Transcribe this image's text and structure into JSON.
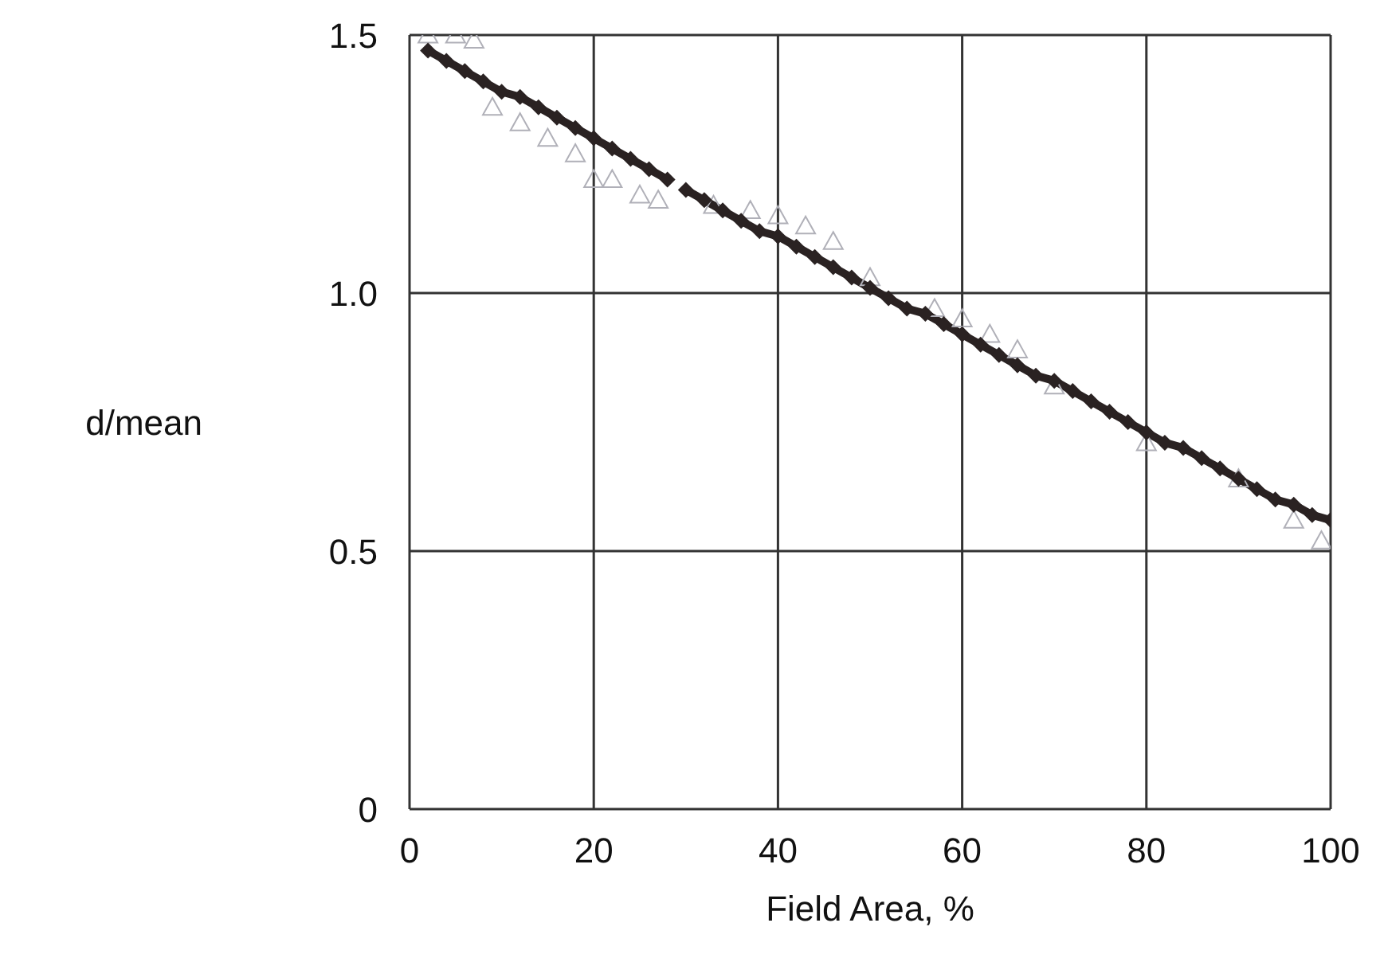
{
  "chart_data": {
    "type": "line",
    "xlabel": "Field Area, %",
    "ylabel": "d/mean",
    "xlim": [
      0,
      100
    ],
    "xticks": [
      0,
      20,
      40,
      60,
      80,
      100
    ],
    "ylim": [
      0,
      1.5
    ],
    "yticks": [
      0,
      0.5,
      {
        "value": 1,
        "label": "1.0"
      },
      1.5
    ],
    "grid": true,
    "line_style": "solid",
    "series": [
      {
        "type": "scatter",
        "marker": "triangle",
        "color": "#b0b0b8",
        "x": [
          2,
          5,
          7,
          9,
          12,
          15,
          18,
          20,
          22,
          25,
          27,
          33,
          37,
          40,
          43,
          46,
          50,
          57,
          60,
          63,
          66,
          70,
          80,
          90,
          96,
          99
        ],
        "values": [
          1.5,
          1.5,
          1.49,
          1.36,
          1.33,
          1.3,
          1.27,
          1.22,
          1.22,
          1.19,
          1.18,
          1.17,
          1.16,
          1.15,
          1.13,
          1.1,
          1.03,
          0.97,
          0.95,
          0.92,
          0.89,
          0.82,
          0.71,
          0.64,
          0.56,
          0.52
        ]
      },
      {
        "marker": "diamond",
        "color": "#2a2222",
        "x": [
          2,
          4,
          6,
          8,
          10,
          12,
          14,
          16,
          18,
          20,
          22,
          24,
          26,
          28,
          29,
          30,
          32,
          34,
          36,
          38,
          40,
          42,
          44,
          46,
          48,
          50,
          52,
          54,
          56,
          58,
          60,
          62,
          64,
          66,
          68,
          70,
          72,
          74,
          76,
          78,
          80,
          82,
          84,
          86,
          88,
          90,
          92,
          94,
          96,
          98,
          100
        ],
        "values": [
          1.47,
          1.45,
          1.43,
          1.41,
          1.39,
          1.38,
          1.36,
          1.34,
          1.32,
          1.3,
          1.28,
          1.26,
          1.24,
          1.22,
          null,
          1.2,
          1.18,
          1.16,
          1.14,
          1.12,
          1.11,
          1.09,
          1.07,
          1.05,
          1.03,
          1.01,
          0.99,
          0.97,
          0.96,
          0.94,
          0.92,
          0.9,
          0.88,
          0.86,
          0.84,
          0.83,
          0.81,
          0.79,
          0.77,
          0.75,
          0.73,
          0.71,
          0.7,
          0.68,
          0.66,
          0.64,
          0.62,
          0.6,
          0.59,
          0.57,
          0.56
        ]
      }
    ]
  }
}
